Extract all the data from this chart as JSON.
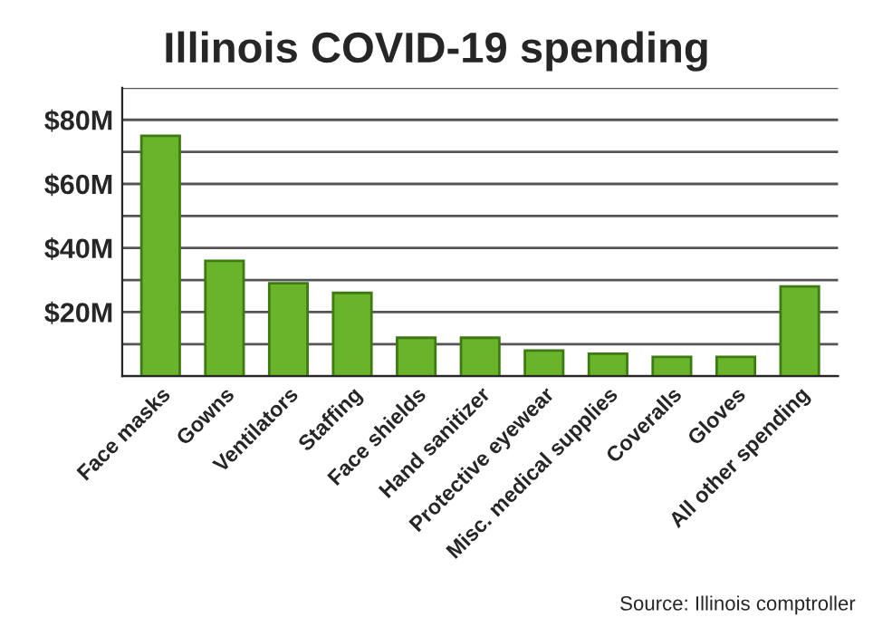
{
  "chart_data": {
    "type": "bar",
    "title": "Illinois COVID-19 spending",
    "categories": [
      "Face masks",
      "Gowns",
      "Ventilators",
      "Staffing",
      "Face shields",
      "Hand sanitizer",
      "Protective eyewear",
      "Misc. medical supplies",
      "Coveralls",
      "Gloves",
      "All other spending"
    ],
    "values": [
      75,
      36,
      29,
      26,
      12,
      12,
      8,
      7,
      6,
      6,
      28
    ],
    "color": "#6ab42c",
    "ylim": [
      0,
      90
    ],
    "yticks": [
      {
        "value": 0,
        "label": null
      },
      {
        "value": 10,
        "label": null
      },
      {
        "value": 20,
        "label": "$20M"
      },
      {
        "value": 30,
        "label": null
      },
      {
        "value": 40,
        "label": "$40M"
      },
      {
        "value": 50,
        "label": null
      },
      {
        "value": 60,
        "label": "$60M"
      },
      {
        "value": 70,
        "label": null
      },
      {
        "value": 80,
        "label": "$80M"
      },
      {
        "value": 90,
        "label": null
      }
    ],
    "grid": "y",
    "annotations": [
      "Source: Illinois comptroller"
    ]
  }
}
